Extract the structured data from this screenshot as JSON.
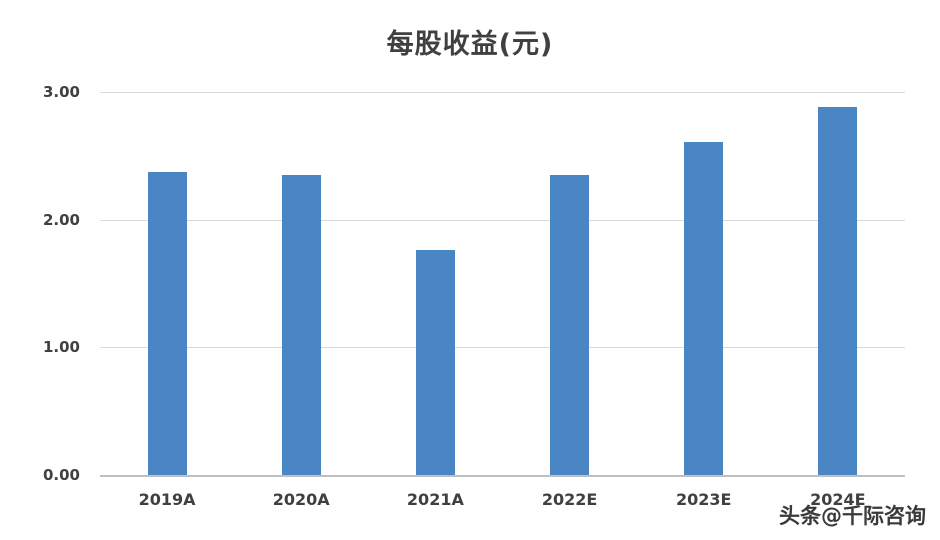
{
  "title": "每股收益(元)",
  "watermark": "头条@千际咨询",
  "colors": {
    "bar": "#4a86c6",
    "gridline": "#d9d9d9",
    "axis_line": "#bfbfbf",
    "text": "#404040"
  },
  "chart_data": {
    "type": "bar",
    "title": "每股收益(元)",
    "categories": [
      "2019A",
      "2020A",
      "2021A",
      "2022E",
      "2023E",
      "2024E"
    ],
    "values": [
      2.37,
      2.35,
      1.76,
      2.35,
      2.61,
      2.88
    ],
    "xlabel": "",
    "ylabel": "",
    "ylim": [
      0,
      3
    ],
    "yticks": [
      0,
      1,
      2,
      3
    ],
    "ytick_labels": [
      "0.00",
      "1.00",
      "2.00",
      "3.00"
    ],
    "grid": true,
    "legend_position": "none"
  }
}
